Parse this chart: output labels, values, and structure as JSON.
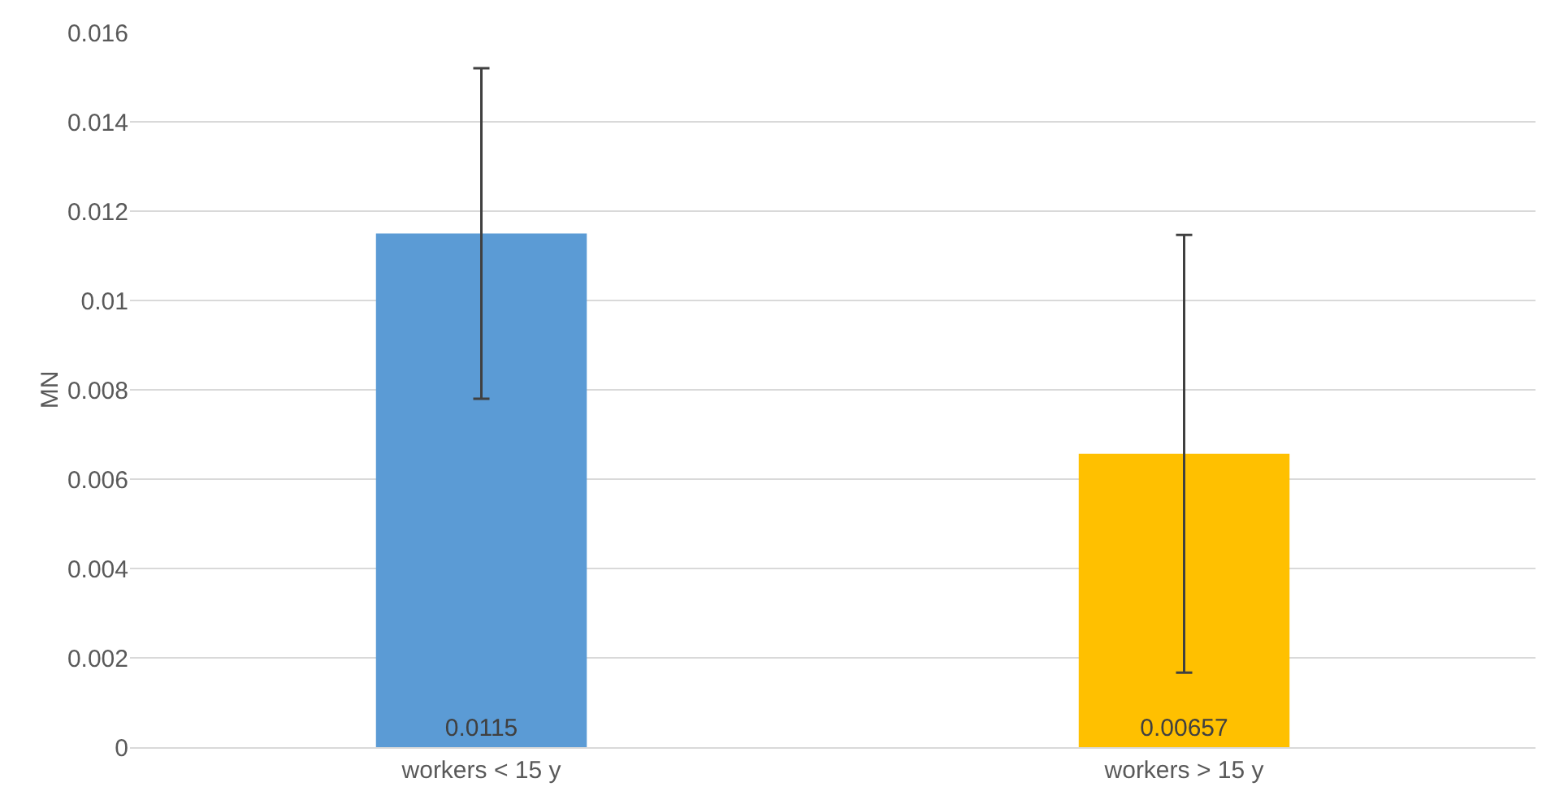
{
  "chart_data": {
    "type": "bar",
    "ylabel": "MN",
    "categories": [
      "workers < 15 y",
      "workers > 15 y"
    ],
    "values": [
      0.0115,
      0.00657
    ],
    "colors": [
      "#5b9bd5",
      "#ffc000"
    ],
    "errors": [
      0.0037,
      0.0049
    ],
    "data_labels": true,
    "ylim": [
      0,
      0.016
    ],
    "yticks": [
      0,
      0.002,
      0.004,
      0.006,
      0.008,
      0.01,
      0.012,
      0.014,
      0.016
    ],
    "grid": "y"
  }
}
